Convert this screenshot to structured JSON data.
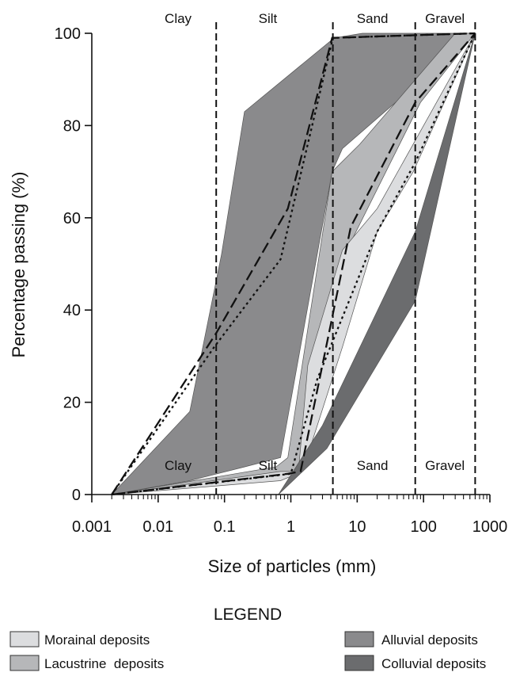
{
  "chart_data": {
    "type": "area",
    "xscale": "log",
    "xlabel": "Size of particles (mm)",
    "ylabel": "Percentage passing (%)",
    "xlim": [
      0.001,
      1000
    ],
    "ylim": [
      0,
      100
    ],
    "x_ticks": [
      0.001,
      0.01,
      0.1,
      1,
      10,
      100,
      1000
    ],
    "x_tick_labels": [
      "0.001",
      "0.01",
      "0.1",
      "1",
      "10",
      "100",
      "1000"
    ],
    "y_ticks": [
      0,
      20,
      40,
      60,
      80,
      100
    ],
    "y_tick_labels": [
      "0",
      "20",
      "40",
      "60",
      "80",
      "100"
    ],
    "grid": false,
    "boundaries": [
      0.075,
      4.3,
      75,
      600
    ],
    "zone_labels": [
      {
        "text": "Clay",
        "x": 0.02,
        "y_position": "top"
      },
      {
        "text": "Silt",
        "x": 0.45,
        "y_position": "top"
      },
      {
        "text": "Sand",
        "x": 17,
        "y_position": "top"
      },
      {
        "text": "Gravel",
        "x": 210,
        "y_position": "top"
      },
      {
        "text": "Clay",
        "x": 0.02,
        "y_position": "bottom"
      },
      {
        "text": "Silt",
        "x": 0.45,
        "y_position": "bottom"
      },
      {
        "text": "Sand",
        "x": 17,
        "y_position": "bottom"
      },
      {
        "text": "Gravel",
        "x": 210,
        "y_position": "bottom"
      }
    ],
    "series": [
      {
        "name": "Alluvial deposits",
        "color": "#8a8a8c",
        "polygon": [
          [
            0.002,
            0
          ],
          [
            0.03,
            18
          ],
          [
            0.09,
            52
          ],
          [
            0.2,
            83
          ],
          [
            4.5,
            99
          ],
          [
            12,
            100
          ],
          [
            600,
            100
          ],
          [
            600,
            100
          ],
          [
            6,
            75
          ],
          [
            4.2,
            70
          ],
          [
            0.7,
            8
          ],
          [
            0.2,
            6
          ],
          [
            0.03,
            3
          ],
          [
            0.002,
            0
          ]
        ]
      },
      {
        "name": "Lacustrine deposits",
        "color": "#b6b7b9",
        "polygon": [
          [
            0.002,
            0
          ],
          [
            0.6,
            6
          ],
          [
            0.9,
            8
          ],
          [
            4.2,
            70
          ],
          [
            11,
            76
          ],
          [
            300,
            100
          ],
          [
            600,
            100
          ],
          [
            90,
            85
          ],
          [
            7,
            53
          ],
          [
            4.2,
            33
          ],
          [
            2,
            27
          ],
          [
            1.5,
            5
          ],
          [
            0.7,
            4
          ],
          [
            0.002,
            0
          ]
        ]
      },
      {
        "name": "Morainal deposits",
        "color": "#dcdddf",
        "polygon": [
          [
            0.002,
            0
          ],
          [
            0.7,
            5
          ],
          [
            1.3,
            5
          ],
          [
            1.8,
            28
          ],
          [
            6,
            53
          ],
          [
            20,
            62
          ],
          [
            600,
            100
          ],
          [
            70,
            70
          ],
          [
            20,
            57
          ],
          [
            6,
            32
          ],
          [
            1.5,
            5
          ],
          [
            0.7,
            3
          ],
          [
            0.002,
            0
          ]
        ]
      },
      {
        "name": "Colluvial deposits",
        "color": "#6b6c6e",
        "polygon": [
          [
            0.65,
            0
          ],
          [
            3,
            15
          ],
          [
            75,
            57
          ],
          [
            600,
            100
          ],
          [
            600,
            100
          ],
          [
            75,
            42
          ],
          [
            3.5,
            10
          ],
          [
            0.65,
            0
          ]
        ]
      }
    ],
    "lines": [
      {
        "style": "long-dash",
        "points": [
          [
            0.002,
            0
          ],
          [
            0.075,
            35
          ],
          [
            0.9,
            62
          ],
          [
            4.2,
            99
          ],
          [
            600,
            100
          ]
        ]
      },
      {
        "style": "dotted",
        "points": [
          [
            0.002,
            0
          ],
          [
            0.07,
            32
          ],
          [
            0.7,
            51
          ],
          [
            4.3,
            99
          ],
          [
            600,
            100
          ]
        ]
      },
      {
        "style": "long-dash",
        "points": [
          [
            0.002,
            0
          ],
          [
            0.9,
            4.5
          ],
          [
            1.4,
            5
          ],
          [
            8,
            58
          ],
          [
            75,
            85
          ],
          [
            600,
            100
          ]
        ]
      },
      {
        "style": "dotted",
        "points": [
          [
            0.002,
            0
          ],
          [
            1,
            4.5
          ],
          [
            2.5,
            25
          ],
          [
            20,
            57
          ],
          [
            75,
            72
          ],
          [
            600,
            100
          ]
        ]
      }
    ]
  },
  "legend": {
    "title": "LEGEND",
    "items": [
      {
        "label": "Morainal deposits",
        "color": "#dcdddf"
      },
      {
        "label": "Lacustrine  deposits",
        "color": "#b6b7b9"
      },
      {
        "label": "Alluvial deposits",
        "color": "#8a8a8c"
      },
      {
        "label": "Colluvial deposits",
        "color": "#6b6c6e"
      }
    ]
  }
}
